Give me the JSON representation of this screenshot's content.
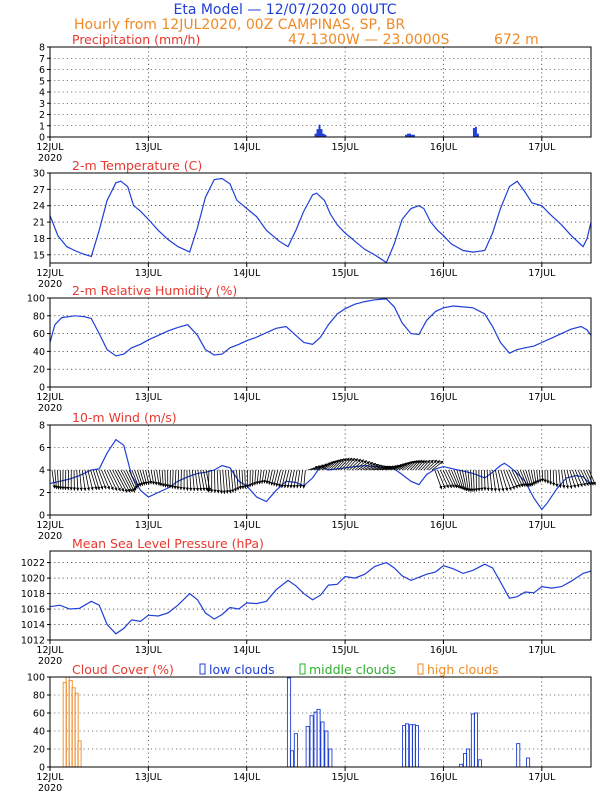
{
  "header": {
    "line1": "Eta Model — 12/07/2020 00UTC",
    "line2": "Hourly from 12JUL2020, 00Z  CAMPINAS, SP, BR",
    "coords": "47.1300W — 23.0000S",
    "altitude": "672  m"
  },
  "colors": {
    "title_blue": "#1f3fd6",
    "title_orange": "#f08a24",
    "panel_title_red": "#e8382f",
    "series_blue": "#1f3fd6",
    "low_clouds": "#1f3fd6",
    "middle_clouds": "#2bb02b",
    "high_clouds": "#f08a24"
  },
  "x_axis": {
    "ticks": [
      {
        "day": 0,
        "label": "12JUL"
      },
      {
        "day": 1,
        "label": "13JUL"
      },
      {
        "day": 2,
        "label": "14JUL"
      },
      {
        "day": 3,
        "label": "15JUL"
      },
      {
        "day": 4,
        "label": "16JUL"
      },
      {
        "day": 5,
        "label": "17JUL"
      }
    ],
    "year_label": "2020",
    "range_days": [
      0,
      5.5
    ]
  },
  "chart_data": [
    {
      "type": "bar",
      "title": "Precipitation (mm/h)",
      "ylim": [
        0,
        8
      ],
      "yticks": [
        0,
        1,
        2,
        3,
        4,
        5,
        6,
        7,
        8
      ],
      "xlabel": "",
      "bars": [
        [
          2.7,
          0.3
        ],
        [
          2.72,
          0.7
        ],
        [
          2.74,
          1.1
        ],
        [
          2.76,
          0.7
        ],
        [
          2.78,
          0.3
        ],
        [
          2.8,
          0.2
        ],
        [
          3.62,
          0.2
        ],
        [
          3.64,
          0.3
        ],
        [
          3.66,
          0.3
        ],
        [
          3.68,
          0.2
        ],
        [
          3.7,
          0.2
        ],
        [
          4.31,
          0.8
        ],
        [
          4.33,
          0.9
        ],
        [
          4.35,
          0.3
        ]
      ]
    },
    {
      "type": "line",
      "title": "2-m Temperature (C)",
      "ylim": [
        13.5,
        30
      ],
      "yticks": [
        15,
        18,
        21,
        24,
        27,
        30
      ],
      "points": [
        [
          0.0,
          22.2
        ],
        [
          0.08,
          18.5
        ],
        [
          0.17,
          16.5
        ],
        [
          0.25,
          15.8
        ],
        [
          0.33,
          15.2
        ],
        [
          0.42,
          14.7
        ],
        [
          0.5,
          19.5
        ],
        [
          0.58,
          25.0
        ],
        [
          0.67,
          28.2
        ],
        [
          0.72,
          28.5
        ],
        [
          0.79,
          27.5
        ],
        [
          0.85,
          24.0
        ],
        [
          0.92,
          23.0
        ],
        [
          1.0,
          21.5
        ],
        [
          1.1,
          19.5
        ],
        [
          1.2,
          17.8
        ],
        [
          1.3,
          16.5
        ],
        [
          1.42,
          15.5
        ],
        [
          1.5,
          20.0
        ],
        [
          1.58,
          25.5
        ],
        [
          1.67,
          28.8
        ],
        [
          1.75,
          29.0
        ],
        [
          1.83,
          28.0
        ],
        [
          1.9,
          25.0
        ],
        [
          2.0,
          23.5
        ],
        [
          2.1,
          22.0
        ],
        [
          2.2,
          19.5
        ],
        [
          2.33,
          17.5
        ],
        [
          2.42,
          16.5
        ],
        [
          2.5,
          19.5
        ],
        [
          2.58,
          23.0
        ],
        [
          2.67,
          26.0
        ],
        [
          2.71,
          26.3
        ],
        [
          2.79,
          25.0
        ],
        [
          2.85,
          22.5
        ],
        [
          2.92,
          20.5
        ],
        [
          3.0,
          19.0
        ],
        [
          3.1,
          17.5
        ],
        [
          3.2,
          16.0
        ],
        [
          3.3,
          15.0
        ],
        [
          3.42,
          13.6
        ],
        [
          3.5,
          17.0
        ],
        [
          3.58,
          21.5
        ],
        [
          3.67,
          23.5
        ],
        [
          3.75,
          24.0
        ],
        [
          3.8,
          23.5
        ],
        [
          3.87,
          21.0
        ],
        [
          3.94,
          19.5
        ],
        [
          4.0,
          18.5
        ],
        [
          4.08,
          17.0
        ],
        [
          4.2,
          15.8
        ],
        [
          4.3,
          15.5
        ],
        [
          4.42,
          15.8
        ],
        [
          4.5,
          19.0
        ],
        [
          4.58,
          23.5
        ],
        [
          4.67,
          27.5
        ],
        [
          4.75,
          28.5
        ],
        [
          4.83,
          26.5
        ],
        [
          4.9,
          24.5
        ],
        [
          5.0,
          24.0
        ],
        [
          5.08,
          22.5
        ],
        [
          5.2,
          20.5
        ],
        [
          5.3,
          18.5
        ],
        [
          5.42,
          16.5
        ],
        [
          5.46,
          18.0
        ],
        [
          5.5,
          21.0
        ]
      ]
    },
    {
      "type": "line",
      "title": "2-m Relative Humidity (%)",
      "ylim": [
        0,
        100
      ],
      "yticks": [
        0,
        20,
        40,
        60,
        80,
        100
      ],
      "points": [
        [
          0.0,
          50
        ],
        [
          0.05,
          70
        ],
        [
          0.12,
          78
        ],
        [
          0.25,
          80
        ],
        [
          0.35,
          79
        ],
        [
          0.42,
          77
        ],
        [
          0.5,
          60
        ],
        [
          0.58,
          42
        ],
        [
          0.67,
          35
        ],
        [
          0.75,
          37
        ],
        [
          0.83,
          44
        ],
        [
          0.92,
          48
        ],
        [
          1.0,
          53
        ],
        [
          1.1,
          58
        ],
        [
          1.2,
          63
        ],
        [
          1.3,
          67
        ],
        [
          1.4,
          70
        ],
        [
          1.5,
          58
        ],
        [
          1.58,
          42
        ],
        [
          1.67,
          36
        ],
        [
          1.75,
          37
        ],
        [
          1.83,
          44
        ],
        [
          1.92,
          48
        ],
        [
          2.0,
          52
        ],
        [
          2.1,
          56
        ],
        [
          2.2,
          61
        ],
        [
          2.3,
          66
        ],
        [
          2.4,
          68
        ],
        [
          2.5,
          58
        ],
        [
          2.58,
          50
        ],
        [
          2.67,
          48
        ],
        [
          2.75,
          56
        ],
        [
          2.83,
          70
        ],
        [
          2.92,
          82
        ],
        [
          3.0,
          88
        ],
        [
          3.1,
          93
        ],
        [
          3.2,
          96
        ],
        [
          3.3,
          98
        ],
        [
          3.42,
          99
        ],
        [
          3.5,
          90
        ],
        [
          3.58,
          72
        ],
        [
          3.67,
          60
        ],
        [
          3.75,
          59
        ],
        [
          3.83,
          75
        ],
        [
          3.92,
          85
        ],
        [
          4.0,
          89
        ],
        [
          4.1,
          91
        ],
        [
          4.2,
          90
        ],
        [
          4.3,
          89
        ],
        [
          4.42,
          82
        ],
        [
          4.5,
          68
        ],
        [
          4.58,
          50
        ],
        [
          4.67,
          38
        ],
        [
          4.75,
          42
        ],
        [
          4.83,
          44
        ],
        [
          4.92,
          46
        ],
        [
          5.0,
          50
        ],
        [
          5.1,
          55
        ],
        [
          5.2,
          60
        ],
        [
          5.3,
          65
        ],
        [
          5.4,
          68
        ],
        [
          5.46,
          64
        ],
        [
          5.5,
          58
        ]
      ]
    },
    {
      "type": "line",
      "title": "10-m Wind (m/s)",
      "ylim": [
        0,
        8
      ],
      "yticks": [
        0,
        2,
        4,
        6,
        8
      ],
      "points": [
        [
          0.0,
          2.8
        ],
        [
          0.1,
          3.0
        ],
        [
          0.2,
          3.2
        ],
        [
          0.3,
          3.5
        ],
        [
          0.42,
          4.0
        ],
        [
          0.5,
          4.1
        ],
        [
          0.58,
          5.5
        ],
        [
          0.67,
          6.7
        ],
        [
          0.75,
          6.2
        ],
        [
          0.83,
          3.5
        ],
        [
          0.92,
          2.2
        ],
        [
          1.0,
          1.6
        ],
        [
          1.1,
          2.0
        ],
        [
          1.2,
          2.4
        ],
        [
          1.3,
          3.0
        ],
        [
          1.4,
          3.4
        ],
        [
          1.5,
          3.7
        ],
        [
          1.58,
          3.8
        ],
        [
          1.67,
          4.0
        ],
        [
          1.75,
          4.4
        ],
        [
          1.83,
          4.2
        ],
        [
          1.92,
          3.0
        ],
        [
          2.0,
          2.6
        ],
        [
          2.1,
          1.6
        ],
        [
          2.2,
          1.2
        ],
        [
          2.3,
          2.2
        ],
        [
          2.4,
          3.0
        ],
        [
          2.5,
          2.9
        ],
        [
          2.58,
          2.6
        ],
        [
          2.67,
          3.3
        ],
        [
          2.75,
          4.3
        ],
        [
          2.83,
          4.0
        ],
        [
          2.92,
          4.1
        ],
        [
          3.0,
          4.2
        ],
        [
          3.1,
          4.3
        ],
        [
          3.2,
          4.4
        ],
        [
          3.3,
          4.3
        ],
        [
          3.42,
          4.2
        ],
        [
          3.5,
          4.1
        ],
        [
          3.58,
          3.6
        ],
        [
          3.67,
          3.0
        ],
        [
          3.75,
          2.7
        ],
        [
          3.83,
          3.6
        ],
        [
          3.92,
          4.1
        ],
        [
          4.0,
          4.3
        ],
        [
          4.1,
          4.1
        ],
        [
          4.2,
          3.9
        ],
        [
          4.3,
          3.7
        ],
        [
          4.42,
          3.3
        ],
        [
          4.5,
          3.8
        ],
        [
          4.58,
          4.4
        ],
        [
          4.62,
          4.6
        ],
        [
          4.67,
          4.3
        ],
        [
          4.75,
          3.7
        ],
        [
          4.83,
          3.0
        ],
        [
          4.92,
          1.5
        ],
        [
          5.0,
          0.5
        ],
        [
          5.05,
          1.0
        ],
        [
          5.15,
          2.3
        ],
        [
          5.25,
          3.3
        ],
        [
          5.35,
          3.5
        ],
        [
          5.42,
          3.4
        ],
        [
          5.5,
          2.7
        ]
      ]
    },
    {
      "type": "line",
      "title": "Mean Sea Level Pressure (hPa)",
      "ylim": [
        1012,
        1023.5
      ],
      "yticks": [
        1012,
        1014,
        1016,
        1018,
        1020,
        1022
      ],
      "points": [
        [
          0.0,
          1016.3
        ],
        [
          0.1,
          1016.5
        ],
        [
          0.2,
          1016.0
        ],
        [
          0.3,
          1016.1
        ],
        [
          0.42,
          1017.0
        ],
        [
          0.5,
          1016.5
        ],
        [
          0.58,
          1014.0
        ],
        [
          0.67,
          1012.8
        ],
        [
          0.75,
          1013.5
        ],
        [
          0.83,
          1014.6
        ],
        [
          0.92,
          1014.4
        ],
        [
          1.0,
          1015.2
        ],
        [
          1.1,
          1015.1
        ],
        [
          1.2,
          1015.5
        ],
        [
          1.3,
          1016.5
        ],
        [
          1.42,
          1018.0
        ],
        [
          1.5,
          1017.2
        ],
        [
          1.58,
          1015.5
        ],
        [
          1.67,
          1014.7
        ],
        [
          1.75,
          1015.3
        ],
        [
          1.83,
          1016.2
        ],
        [
          1.92,
          1016.0
        ],
        [
          2.0,
          1016.8
        ],
        [
          2.1,
          1016.7
        ],
        [
          2.2,
          1017.0
        ],
        [
          2.3,
          1018.5
        ],
        [
          2.42,
          1019.7
        ],
        [
          2.5,
          1019.0
        ],
        [
          2.58,
          1018.0
        ],
        [
          2.67,
          1017.2
        ],
        [
          2.75,
          1017.8
        ],
        [
          2.83,
          1019.1
        ],
        [
          2.92,
          1019.2
        ],
        [
          3.0,
          1020.2
        ],
        [
          3.1,
          1020.0
        ],
        [
          3.2,
          1020.5
        ],
        [
          3.3,
          1021.5
        ],
        [
          3.42,
          1022.0
        ],
        [
          3.5,
          1021.3
        ],
        [
          3.58,
          1020.3
        ],
        [
          3.67,
          1019.7
        ],
        [
          3.75,
          1020.1
        ],
        [
          3.83,
          1020.5
        ],
        [
          3.92,
          1020.8
        ],
        [
          4.0,
          1021.6
        ],
        [
          4.1,
          1021.2
        ],
        [
          4.2,
          1020.6
        ],
        [
          4.3,
          1021.0
        ],
        [
          4.42,
          1021.8
        ],
        [
          4.5,
          1021.3
        ],
        [
          4.58,
          1019.5
        ],
        [
          4.67,
          1017.4
        ],
        [
          4.75,
          1017.6
        ],
        [
          4.83,
          1018.2
        ],
        [
          4.92,
          1018.1
        ],
        [
          5.0,
          1018.9
        ],
        [
          5.1,
          1018.7
        ],
        [
          5.2,
          1018.9
        ],
        [
          5.3,
          1019.6
        ],
        [
          5.42,
          1020.6
        ],
        [
          5.5,
          1020.9
        ]
      ]
    },
    {
      "type": "bar",
      "title": "Cloud Cover (%)",
      "ylim": [
        0,
        100
      ],
      "yticks": [
        0,
        20,
        40,
        60,
        80,
        100
      ],
      "legend": [
        "low clouds",
        "middle clouds",
        "high clouds"
      ],
      "series": [
        {
          "name": "high clouds",
          "bars": [
            [
              0.15,
              94
            ],
            [
              0.18,
              100
            ],
            [
              0.21,
              96
            ],
            [
              0.24,
              88
            ],
            [
              0.27,
              82
            ],
            [
              0.3,
              29
            ]
          ]
        },
        {
          "name": "low clouds",
          "bars": [
            [
              2.43,
              99
            ],
            [
              2.46,
              18
            ],
            [
              2.5,
              37
            ],
            [
              2.62,
              45
            ],
            [
              2.66,
              57
            ],
            [
              2.7,
              61
            ],
            [
              2.73,
              64
            ],
            [
              2.77,
              50
            ],
            [
              2.81,
              40
            ],
            [
              2.85,
              20
            ],
            [
              3.6,
              46
            ],
            [
              3.63,
              48
            ],
            [
              3.67,
              47
            ],
            [
              3.7,
              47
            ],
            [
              3.73,
              46
            ],
            [
              4.18,
              3
            ],
            [
              4.22,
              15
            ],
            [
              4.25,
              20
            ],
            [
              4.3,
              59
            ],
            [
              4.33,
              60
            ],
            [
              4.37,
              8
            ],
            [
              4.76,
              26
            ],
            [
              4.86,
              10
            ]
          ]
        }
      ]
    }
  ]
}
